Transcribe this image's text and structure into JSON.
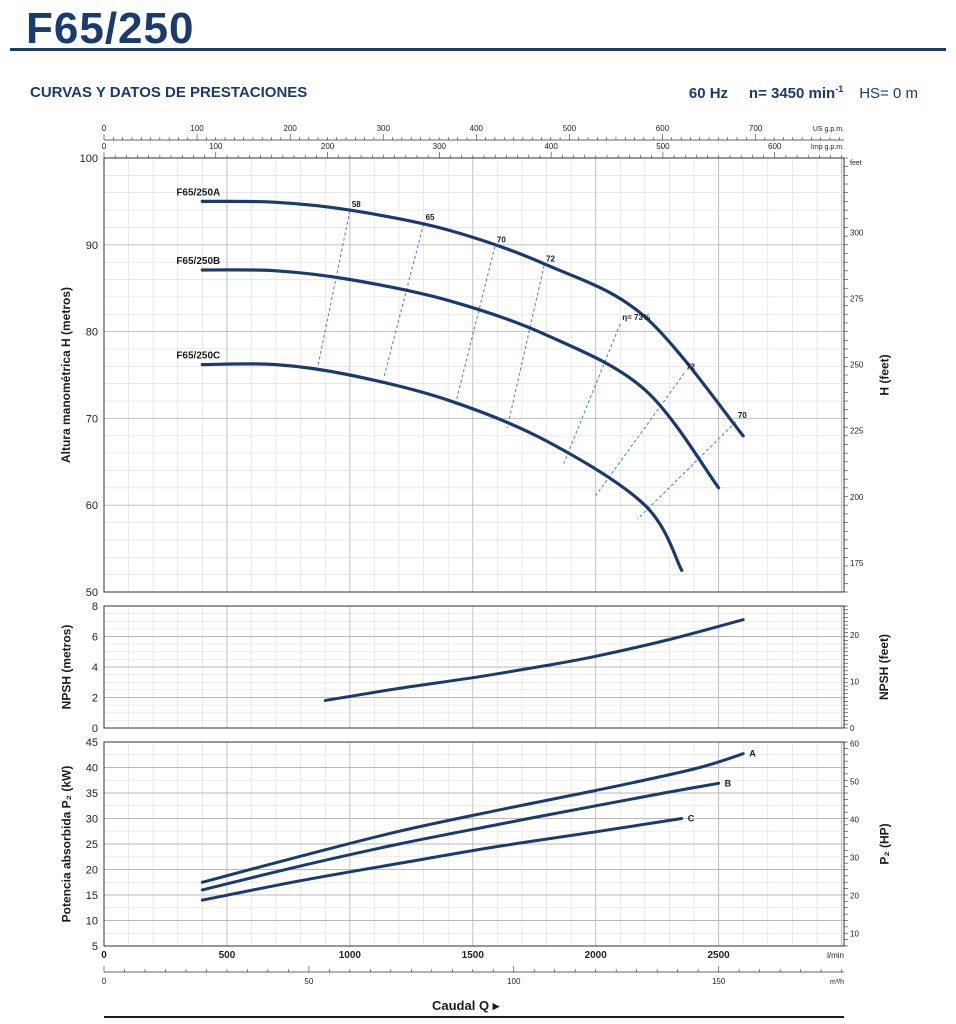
{
  "header": {
    "title": "F65/250",
    "subtitle": "CURVAS Y DATOS DE PRESTACIONES",
    "freq": "60 Hz",
    "speed": "n= 3450 min",
    "speed_sup": "-1",
    "hs": "HS= 0 m"
  },
  "axes": {
    "top_usgpm": {
      "label": "US g.p.m.",
      "ticks": [
        0,
        100,
        200,
        300,
        400,
        500,
        600,
        700
      ],
      "max": 795
    },
    "top_impgpm": {
      "label": "Imp g.p.m.",
      "ticks": [
        0,
        100,
        200,
        300,
        400,
        500,
        600
      ],
      "max": 662
    },
    "bottom_lmin": {
      "label": "l/min",
      "ticks": [
        500,
        1000,
        1500,
        2000,
        2500
      ],
      "max": 3010
    },
    "bottom_m3h": {
      "label": "m³/h",
      "ticks": [
        0,
        50,
        100,
        150
      ],
      "max": 180.6
    },
    "caudal_label": "Caudal Q"
  },
  "chart_data": [
    {
      "type": "line",
      "name": "head",
      "ylabel": "Altura manométrica H  (metros)",
      "ylabel_right": "H (feet)",
      "xunit": "l/min",
      "ylim": [
        50,
        100
      ],
      "yticks": [
        50,
        60,
        70,
        80,
        90,
        100
      ],
      "right_ticks": [
        175,
        200,
        225,
        250,
        275,
        300
      ],
      "right_top_label": "feet",
      "series": [
        {
          "name": "F65/250A",
          "x": [
            400,
            700,
            1000,
            1400,
            1800,
            2200,
            2600
          ],
          "y": [
            95,
            94.9,
            94,
            91.7,
            87.7,
            81.7,
            68
          ]
        },
        {
          "name": "F65/250B",
          "x": [
            400,
            700,
            1000,
            1400,
            1800,
            2200,
            2500
          ],
          "y": [
            87.1,
            87,
            86,
            83.6,
            79.6,
            73.3,
            62
          ]
        },
        {
          "name": "F65/250C",
          "x": [
            400,
            700,
            1000,
            1400,
            1800,
            2200,
            2350
          ],
          "y": [
            76.2,
            76.2,
            75,
            72.1,
            67.4,
            60,
            52.5
          ]
        }
      ],
      "efficiency": [
        {
          "label": "58",
          "x": [
            1000,
            870
          ],
          "y": [
            93.9,
            76
          ]
        },
        {
          "label": "65",
          "x": [
            1300,
            1140
          ],
          "y": [
            92.4,
            74.9
          ]
        },
        {
          "label": "70",
          "x": [
            1590,
            1430
          ],
          "y": [
            89.8,
            71.7
          ]
        },
        {
          "label": "72",
          "x": [
            1790,
            1640
          ],
          "y": [
            87.6,
            68.9
          ]
        },
        {
          "label": "η= 73%",
          "x": [
            2100,
            1870
          ],
          "y": [
            80.9,
            64.8
          ]
        },
        {
          "label": "72",
          "x": [
            2360,
            2000
          ],
          "y": [
            75.2,
            61.1
          ]
        },
        {
          "label": "70",
          "x": [
            2570,
            2170
          ],
          "y": [
            69.6,
            58.4
          ]
        }
      ]
    },
    {
      "type": "line",
      "name": "npsh",
      "ylabel": "NPSH  (metros)",
      "ylabel_right": "NPSH  (feet)",
      "xunit": "l/min",
      "ylim": [
        0,
        8
      ],
      "yticks": [
        0,
        2,
        4,
        6,
        8
      ],
      "right_ticks": [
        0,
        10,
        20
      ],
      "series": [
        {
          "name": "NPSH",
          "x": [
            900,
            1200,
            1500,
            1800,
            2000,
            2300,
            2600
          ],
          "y": [
            1.8,
            2.6,
            3.3,
            4.1,
            4.7,
            5.8,
            7.1
          ]
        }
      ]
    },
    {
      "type": "line",
      "name": "power",
      "ylabel": "Potencia absorbida  P₂  (kW)",
      "ylabel_right": "P₂ (HP)",
      "xunit": "l/min",
      "ylim": [
        5,
        45
      ],
      "yticks": [
        5,
        10,
        15,
        20,
        25,
        30,
        35,
        40,
        45
      ],
      "right_ticks": [
        10,
        20,
        30,
        40,
        50,
        60
      ],
      "series": [
        {
          "name": "A",
          "x": [
            400,
            800,
            1200,
            1600,
            2000,
            2400,
            2600
          ],
          "y": [
            17.5,
            22.6,
            27.5,
            31.6,
            35.5,
            39.7,
            42.7
          ]
        },
        {
          "name": "B",
          "x": [
            400,
            800,
            1200,
            1600,
            2000,
            2300,
            2500
          ],
          "y": [
            16,
            20.7,
            25,
            28.8,
            32.5,
            35.2,
            36.9
          ]
        },
        {
          "name": "C",
          "x": [
            400,
            800,
            1200,
            1600,
            2000,
            2350
          ],
          "y": [
            14,
            17.8,
            21.2,
            24.5,
            27.4,
            30
          ]
        }
      ]
    }
  ]
}
